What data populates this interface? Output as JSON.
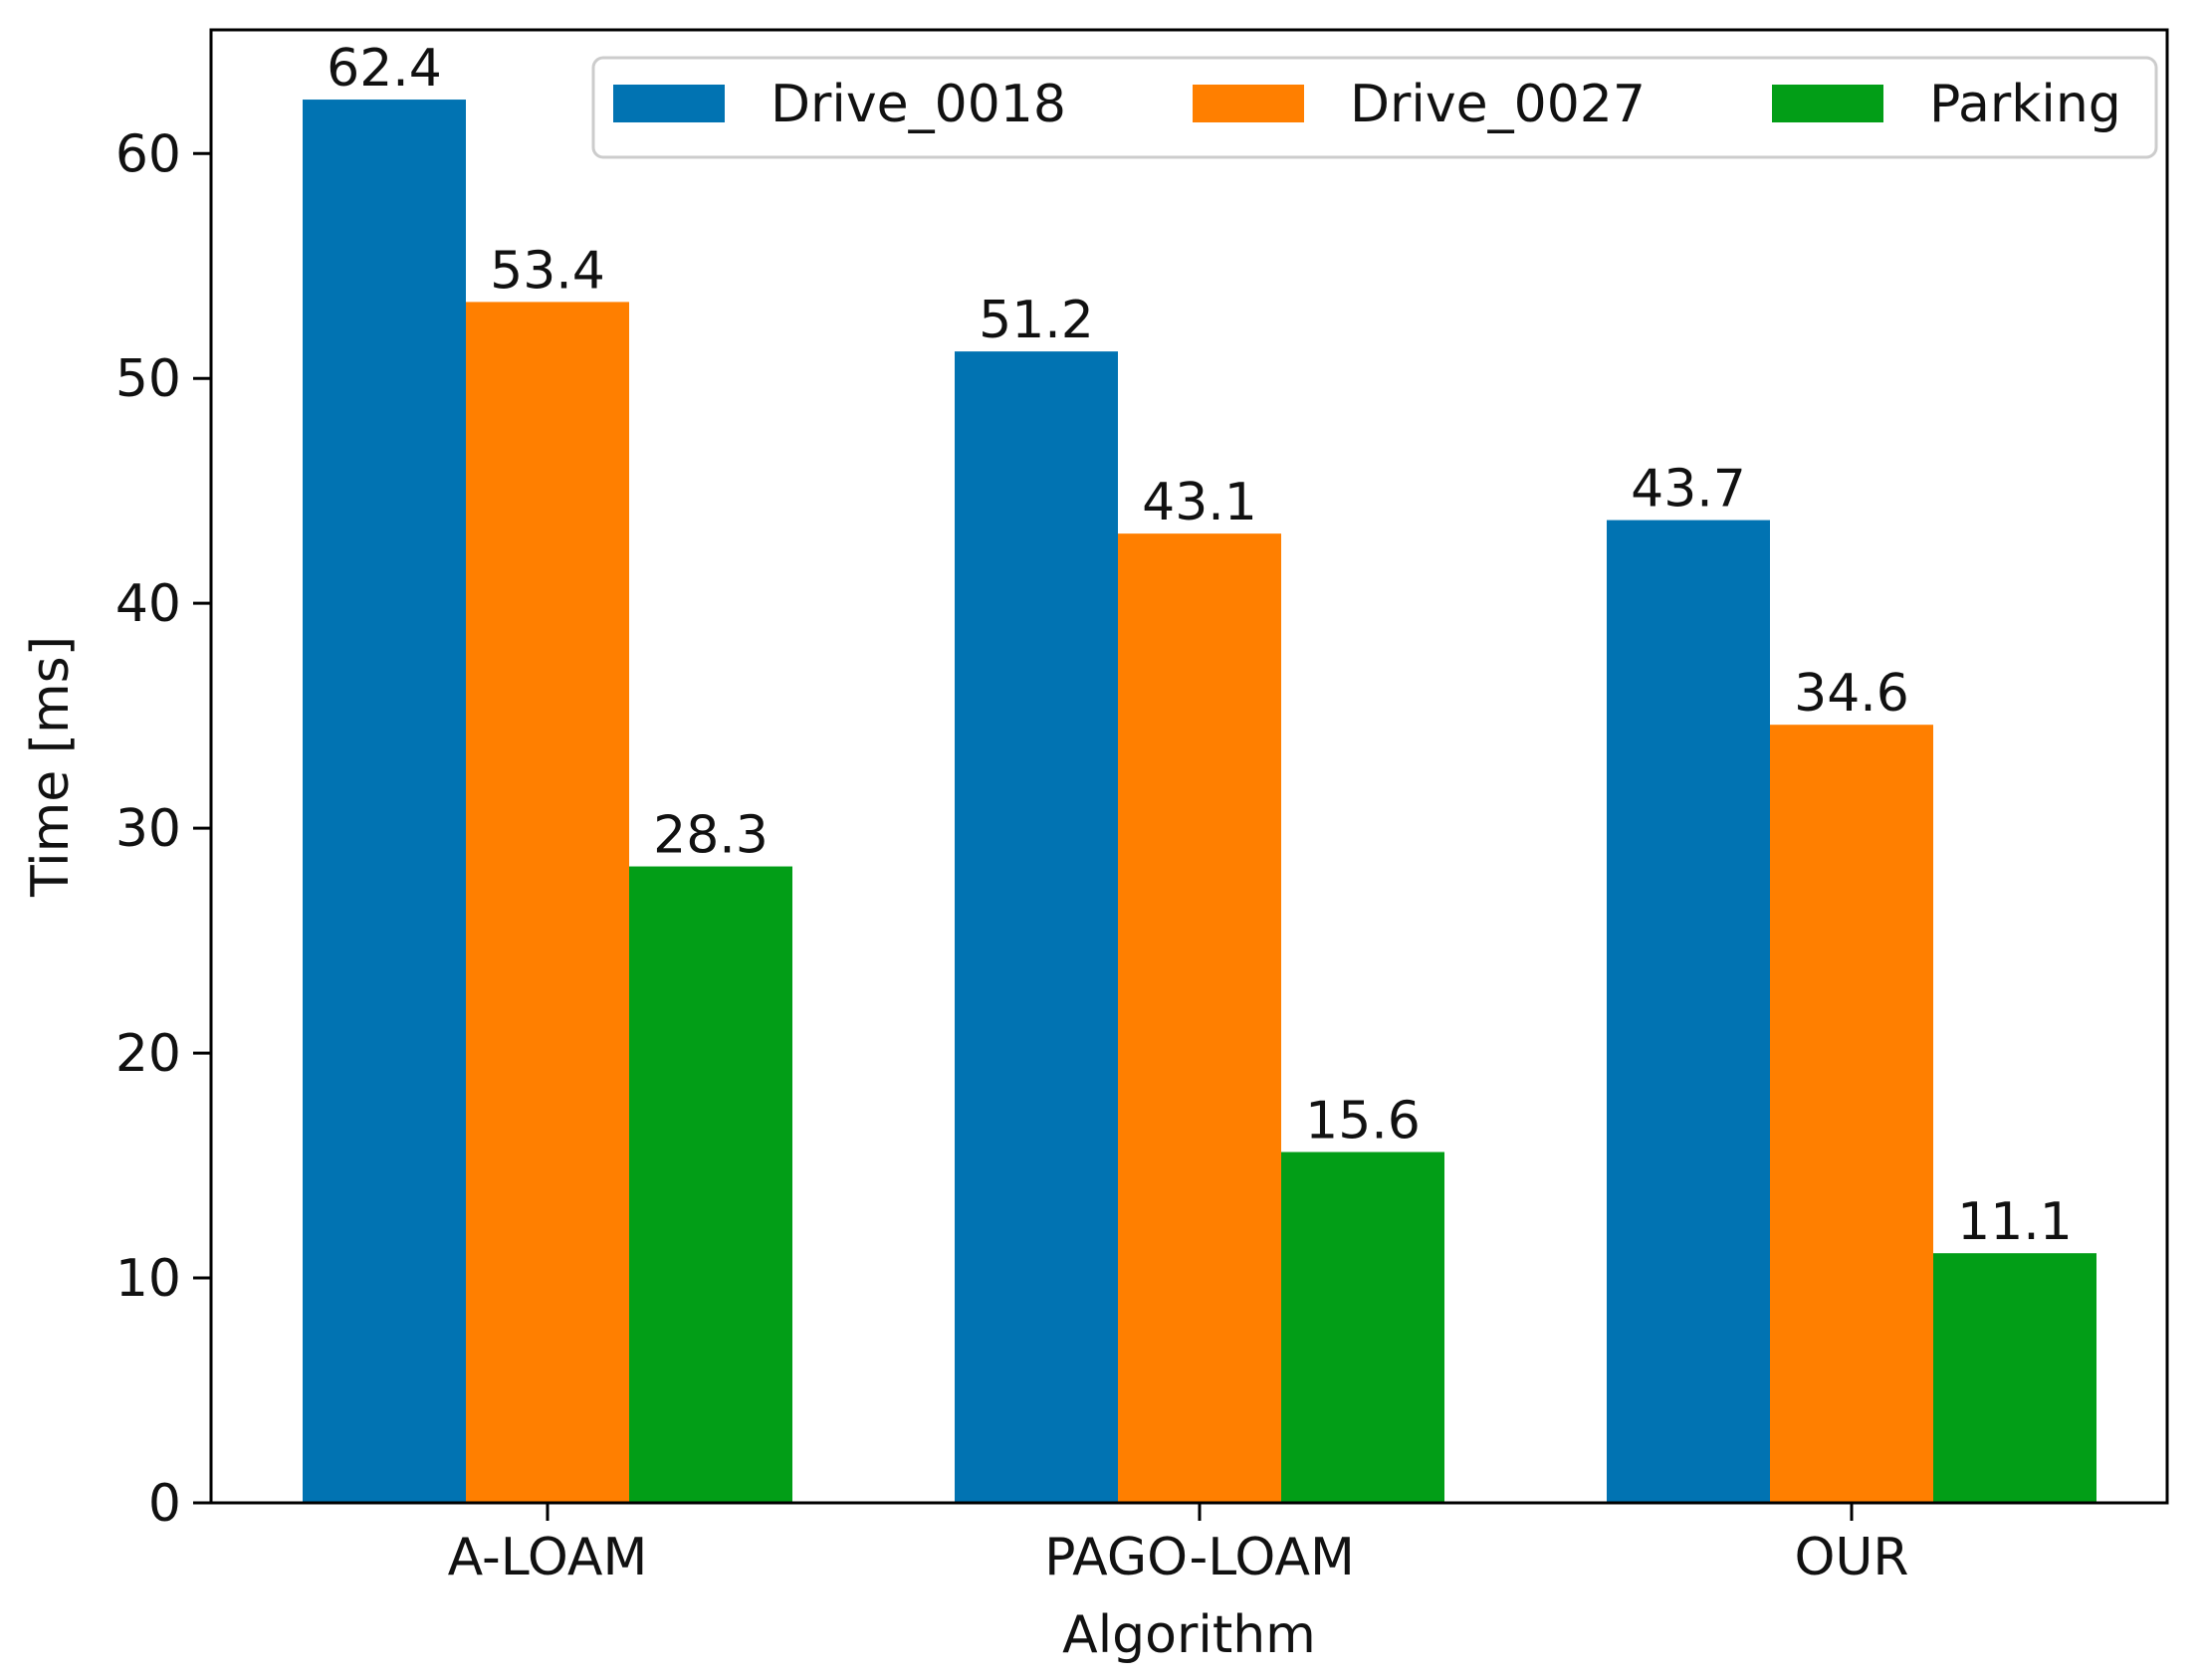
{
  "chart_data": {
    "type": "bar",
    "title": "",
    "xlabel": "Algorithm",
    "ylabel": "Time [ms]",
    "categories": [
      "A-LOAM",
      "PAGO-LOAM",
      "OUR"
    ],
    "series": [
      {
        "name": "Drive_0018",
        "color": "#0173b2",
        "values": [
          62.4,
          51.2,
          43.7
        ]
      },
      {
        "name": "Drive_0027",
        "color": "#ff7f00",
        "values": [
          53.4,
          43.1,
          34.6
        ]
      },
      {
        "name": "Parking",
        "color": "#029e17",
        "values": [
          28.3,
          15.6,
          11.1
        ]
      }
    ],
    "data_labels": [
      [
        "62.4",
        "51.2",
        "43.7"
      ],
      [
        "53.4",
        "43.1",
        "34.6"
      ],
      [
        "28.3",
        "15.6",
        "11.1"
      ]
    ],
    "yticks": [
      0,
      10,
      20,
      30,
      40,
      50,
      60
    ],
    "ylim": [
      0,
      65.5
    ],
    "grid": false,
    "legend_position": "top-right"
  }
}
